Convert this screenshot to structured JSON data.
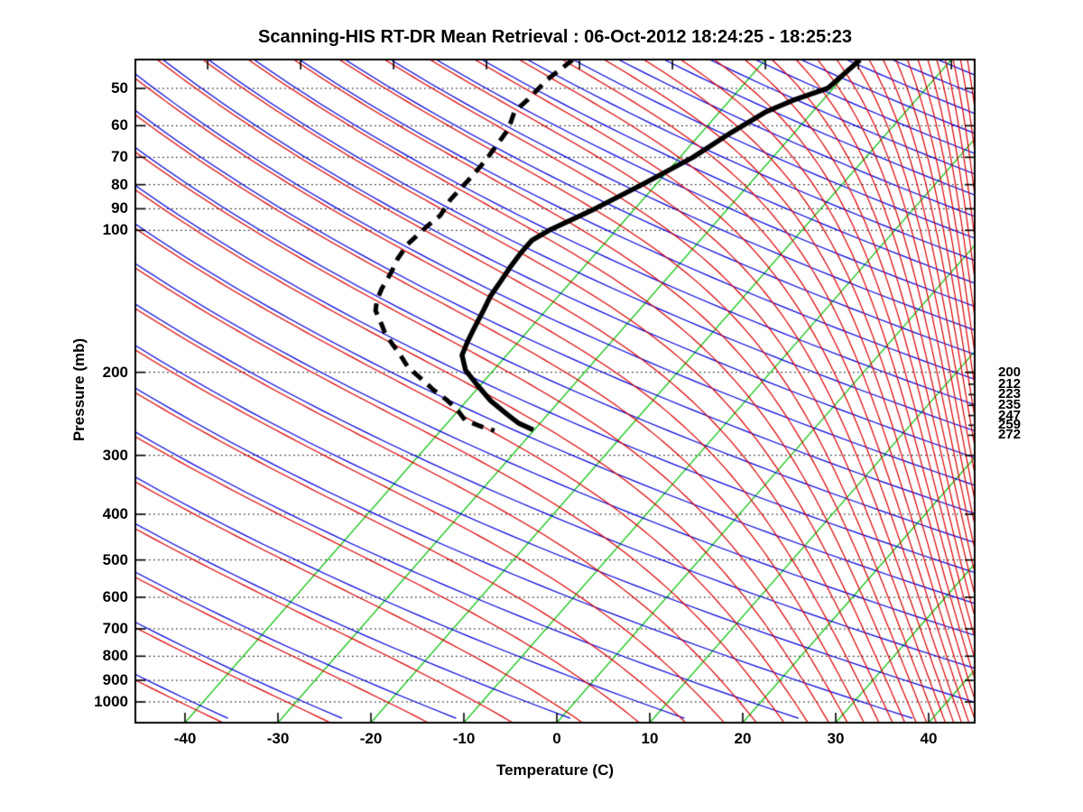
{
  "title": "Scanning-HIS RT-DR Mean Retrieval : 06-Oct-2012 18:24:25 - 18:25:23",
  "chart_data": {
    "type": "line",
    "diagram": "skew-T log-p atmospheric sounding",
    "title": "Scanning-HIS RT-DR Mean Retrieval : 06-Oct-2012 18:24:25 - 18:25:23",
    "xlabel": "Temperature (C)",
    "ylabel": "Pressure (mb)",
    "x_ticks_c": [
      -40,
      -30,
      -20,
      -10,
      0,
      10,
      20,
      30,
      40
    ],
    "x_range_c": [
      -45.6,
      45.0
    ],
    "y_ticks_mb": [
      50,
      60,
      70,
      80,
      90,
      100,
      200,
      300,
      400,
      500,
      600,
      700,
      800,
      900,
      1000
    ],
    "p_range_mb": [
      43.4,
      1107
    ],
    "y_scale": "log",
    "grid": "horizontal dotted black lines at each labeled pressure",
    "legend_position": "none",
    "right_level_labels_mb": [
      "200",
      "212",
      "223",
      "235",
      "247",
      "259",
      "272"
    ],
    "colors": {
      "isotherm": "#00c000",
      "dry_adiabat": "#0000dd",
      "pseudoadiabat": "#dd0000",
      "profile": "#000000",
      "grid": "#000000",
      "frame": "#000000"
    },
    "background_lines": {
      "isotherms_c": {
        "from": -40,
        "to": 40,
        "step": 10
      },
      "dry_adiabats_theta_k": {
        "from": 220,
        "to": 628,
        "step": 12
      },
      "pseudoadiabats_theta_e_k": {
        "from": 218.5,
        "to": 795,
        "step": 12
      }
    },
    "series": [
      {
        "name": "temperature",
        "style": "solid",
        "color": "#000000",
        "line_width": 5.5,
        "points_p_mb_T_c": [
          [
            43.5,
            -29.8
          ],
          [
            50,
            -30.6
          ],
          [
            53,
            -33.2
          ],
          [
            56,
            -35.0
          ],
          [
            62,
            -36.8
          ],
          [
            70,
            -38.6
          ],
          [
            80,
            -41.5
          ],
          [
            90,
            -44.3
          ],
          [
            100,
            -47.2
          ],
          [
            105,
            -48.1
          ],
          [
            112,
            -48.1
          ],
          [
            120,
            -47.9
          ],
          [
            128,
            -47.6
          ],
          [
            138,
            -47.3
          ],
          [
            148,
            -46.7
          ],
          [
            160,
            -46.1
          ],
          [
            172,
            -45.5
          ],
          [
            184,
            -44.8
          ],
          [
            198,
            -43.0
          ],
          [
            212,
            -40.5
          ],
          [
            230,
            -37.4
          ],
          [
            246,
            -34.3
          ],
          [
            256,
            -32.4
          ],
          [
            265,
            -30.1
          ]
        ]
      },
      {
        "name": "dewpoint",
        "style": "dashed",
        "color": "#000000",
        "line_width": 5,
        "points_p_mb_T_c": [
          [
            43.5,
            -60.7
          ],
          [
            48,
            -61.6
          ],
          [
            53,
            -61.8
          ],
          [
            56,
            -62.1
          ],
          [
            61,
            -61.1
          ],
          [
            69,
            -60.7
          ],
          [
            73,
            -60.6
          ],
          [
            79,
            -60.6
          ],
          [
            86,
            -60.7
          ],
          [
            93,
            -60.3
          ],
          [
            98,
            -60.7
          ],
          [
            107,
            -61.1
          ],
          [
            115,
            -60.8
          ],
          [
            123,
            -60.2
          ],
          [
            133,
            -59.7
          ],
          [
            141,
            -59.1
          ],
          [
            148,
            -58.3
          ],
          [
            158,
            -56.4
          ],
          [
            165,
            -55.2
          ],
          [
            175,
            -53.2
          ],
          [
            183,
            -51.6
          ],
          [
            195,
            -49.5
          ],
          [
            203,
            -47.7
          ],
          [
            211,
            -46.0
          ],
          [
            218,
            -44.6
          ],
          [
            228,
            -42.4
          ],
          [
            240,
            -40.2
          ],
          [
            253,
            -38.3
          ],
          [
            262,
            -35.6
          ],
          [
            266,
            -34.2
          ]
        ]
      }
    ]
  }
}
